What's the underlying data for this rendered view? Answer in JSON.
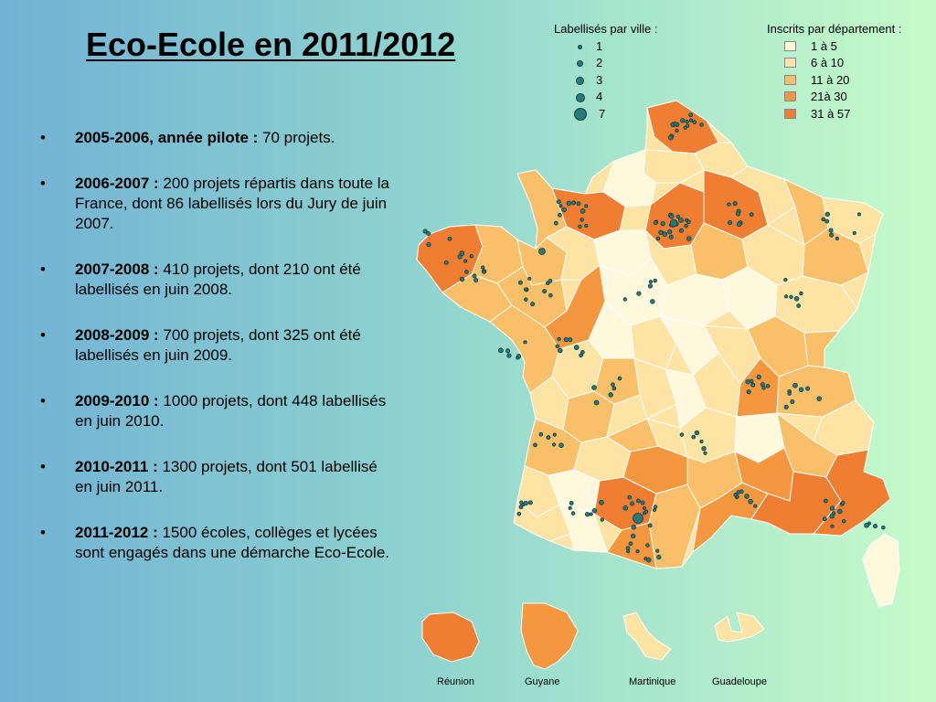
{
  "title": "Eco-Ecole en 2011/2012",
  "bullets": [
    {
      "bold": "2005-2006, année pilote :",
      "text": " 70 projets."
    },
    {
      "bold": "2006-2007 :",
      "text": " 200 projets répartis dans toute la France, dont 86 labellisés lors du Jury de juin 2007."
    },
    {
      "bold": "2007-2008 :",
      "text": " 410 projets, dont 210 ont été labellisés en juin 2008."
    },
    {
      "bold": "2008-2009 :",
      "text": " 700 projets, dont 325 ont été  labellisés en juin 2009."
    },
    {
      "bold": "2009-2010 :",
      "text": " 1000 projets, dont 448 labellisés en juin 2010."
    },
    {
      "bold": "2010-2011 :",
      "text": " 1300 projets, dont 501 labellisé en juin 2011."
    },
    {
      "bold": "2011-2012 :",
      "text": " 1500 écoles, collèges et lycées sont engagés dans une démarche Eco-Ecole."
    }
  ],
  "legend_dots": {
    "title": "Labellisés par ville :",
    "items": [
      "1",
      "2",
      "3",
      "4",
      "7"
    ]
  },
  "legend_choro": {
    "title": "Inscrits par département :",
    "items": [
      {
        "label": "1 à 5",
        "color": "#fff8dc"
      },
      {
        "label": "6 à 10",
        "color": "#fde3a4"
      },
      {
        "label": "11 à 20",
        "color": "#f9bf69"
      },
      {
        "label": "21à 30",
        "color": "#f4973e"
      },
      {
        "label": "31 à 57",
        "color": "#ef7d32"
      }
    ]
  },
  "overseas": {
    "reunion": "Réunion",
    "guyane": "Guyane",
    "martinique": "Martinique",
    "guadeloupe": "Guadeloupe"
  },
  "colors": {
    "dot_fill": "#2a7a7a",
    "dot_stroke": "#0f3d3f",
    "border": "#ffffff"
  }
}
